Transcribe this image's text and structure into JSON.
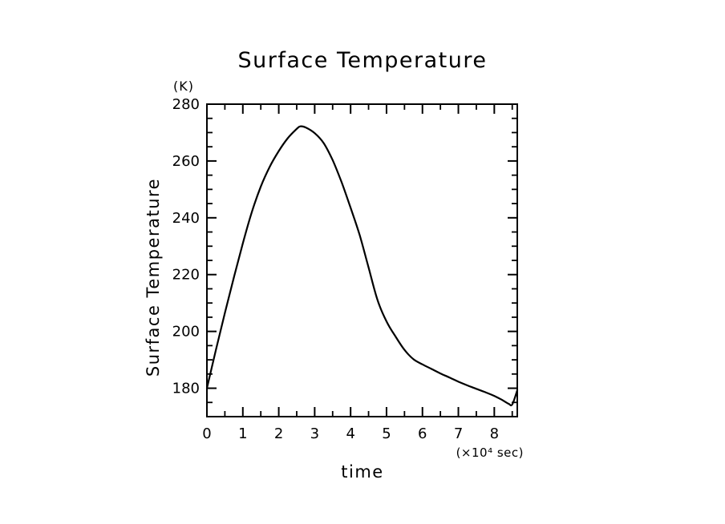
{
  "window": {
    "background": "#ffffff"
  },
  "chart_data": {
    "type": "line",
    "title": "Surface Temperature",
    "xlabel": "time",
    "x_unit_label": "(×10⁴ sec)",
    "ylabel": "Surface Temperature",
    "y_unit_label": "(K)",
    "xlim": [
      0,
      8.64
    ],
    "ylim": [
      170,
      280
    ],
    "x_major_ticks": [
      0,
      1,
      2,
      3,
      4,
      5,
      6,
      7,
      8
    ],
    "x_tick_labels": [
      "0",
      "1",
      "2",
      "3",
      "4",
      "5",
      "6",
      "7",
      "8"
    ],
    "x_minor_tick_step": 0.5,
    "y_major_ticks": [
      180,
      200,
      220,
      240,
      260,
      280
    ],
    "y_tick_labels": [
      "180",
      "200",
      "220",
      "240",
      "260",
      "280"
    ],
    "y_minor_tick_step": 5,
    "grid": false,
    "legend": false,
    "axis_color": "#000000",
    "line_color": "#000000",
    "series": [
      {
        "name": "Surface Temperature",
        "x": [
          0,
          0.25,
          0.5,
          0.75,
          1,
          1.25,
          1.5,
          1.75,
          2,
          2.25,
          2.5,
          2.6,
          2.75,
          3,
          3.25,
          3.5,
          3.75,
          4,
          4.25,
          4.5,
          4.75,
          5,
          5.25,
          5.5,
          5.75,
          6,
          6.25,
          6.5,
          6.75,
          7,
          7.25,
          7.5,
          7.75,
          8,
          8.2,
          8.4,
          8.5,
          8.64
        ],
        "y": [
          180,
          193.5,
          206.5,
          219,
          231,
          242,
          251,
          258,
          263.5,
          268,
          271.3,
          272.2,
          271.8,
          269.8,
          266.3,
          260.3,
          252.5,
          243.5,
          234,
          222.5,
          211,
          203.5,
          198.2,
          193.5,
          190.2,
          188.4,
          186.8,
          185.2,
          183.8,
          182.3,
          181,
          179.8,
          178.6,
          177.3,
          176,
          174.5,
          174.3,
          179.3
        ]
      }
    ]
  }
}
